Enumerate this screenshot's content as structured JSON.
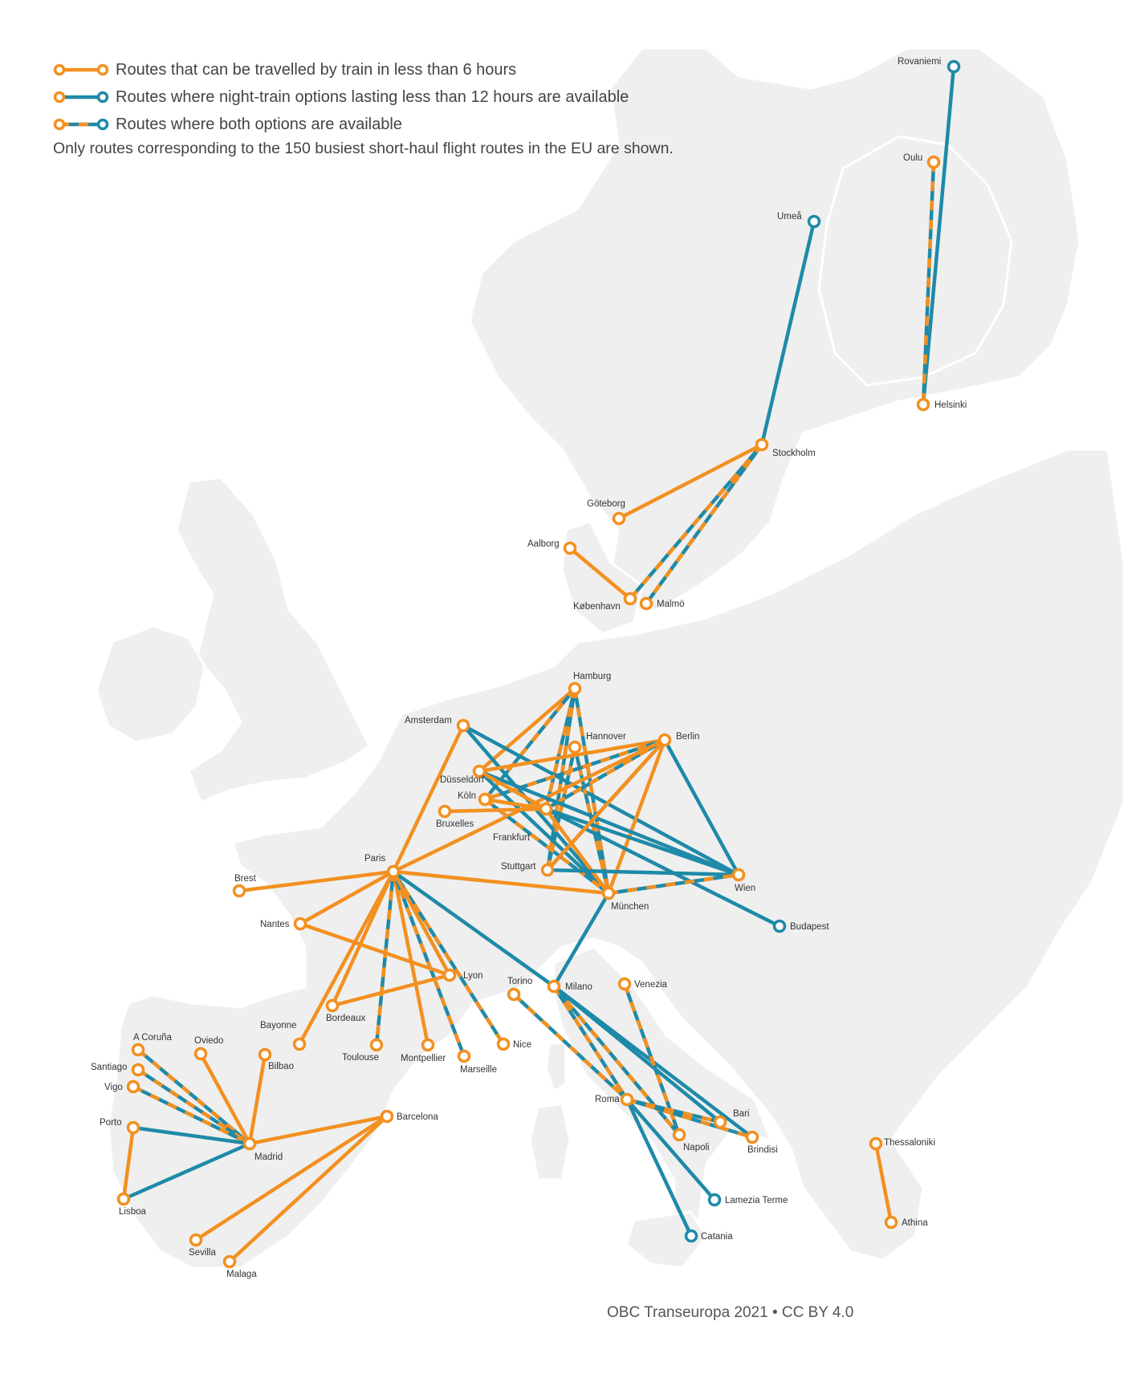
{
  "legend": {
    "train": "Routes that can be travelled by train in less than 6 hours",
    "night": "Routes where night-train options lasting less than 12 hours are available",
    "both": "Routes where both options are available",
    "note": "Only routes corresponding to the 150 busiest short-haul flight routes in the EU are shown."
  },
  "credit": "OBC Transeuropa 2021 • CC BY 4.0",
  "colors": {
    "train": "#f39020",
    "night": "#1e8aa8",
    "land": "#efefef"
  },
  "cities": [
    {
      "id": "rovaniemi",
      "name": "Rovaniemi",
      "kind": "night"
    },
    {
      "id": "oulu",
      "name": "Oulu",
      "kind": "train"
    },
    {
      "id": "umea",
      "name": "Umeå",
      "kind": "night"
    },
    {
      "id": "helsinki",
      "name": "Helsinki",
      "kind": "train"
    },
    {
      "id": "stockholm",
      "name": "Stockholm",
      "kind": "train"
    },
    {
      "id": "goteborg",
      "name": "Göteborg",
      "kind": "train"
    },
    {
      "id": "aalborg",
      "name": "Aalborg",
      "kind": "train"
    },
    {
      "id": "kobenhavn",
      "name": "København",
      "kind": "train"
    },
    {
      "id": "malmo",
      "name": "Malmö",
      "kind": "train"
    },
    {
      "id": "hamburg",
      "name": "Hamburg",
      "kind": "train"
    },
    {
      "id": "amsterdam",
      "name": "Amsterdam",
      "kind": "train"
    },
    {
      "id": "hannover",
      "name": "Hannover",
      "kind": "train"
    },
    {
      "id": "berlin",
      "name": "Berlin",
      "kind": "train"
    },
    {
      "id": "dusseldorf",
      "name": "Düsseldorf",
      "kind": "train"
    },
    {
      "id": "koln",
      "name": "Köln",
      "kind": "train"
    },
    {
      "id": "bruxelles",
      "name": "Bruxelles",
      "kind": "train"
    },
    {
      "id": "frankfurt",
      "name": "Frankfurt",
      "kind": "train"
    },
    {
      "id": "stuttgart",
      "name": "Stuttgart",
      "kind": "train"
    },
    {
      "id": "paris",
      "name": "Paris",
      "kind": "train"
    },
    {
      "id": "brest",
      "name": "Brest",
      "kind": "train"
    },
    {
      "id": "munchen",
      "name": "München",
      "kind": "train"
    },
    {
      "id": "wien",
      "name": "Wien",
      "kind": "train"
    },
    {
      "id": "budapest",
      "name": "Budapest",
      "kind": "night"
    },
    {
      "id": "nantes",
      "name": "Nantes",
      "kind": "train"
    },
    {
      "id": "lyon",
      "name": "Lyon",
      "kind": "train"
    },
    {
      "id": "torino",
      "name": "Torino",
      "kind": "train"
    },
    {
      "id": "milano",
      "name": "Milano",
      "kind": "train"
    },
    {
      "id": "venezia",
      "name": "Venezia",
      "kind": "train"
    },
    {
      "id": "bordeaux",
      "name": "Bordeaux",
      "kind": "train"
    },
    {
      "id": "bayonne",
      "name": "Bayonne",
      "kind": "train"
    },
    {
      "id": "toulouse",
      "name": "Toulouse",
      "kind": "train"
    },
    {
      "id": "montpellier",
      "name": "Montpellier",
      "kind": "train"
    },
    {
      "id": "marseille",
      "name": "Marseille",
      "kind": "train"
    },
    {
      "id": "nice",
      "name": "Nice",
      "kind": "train"
    },
    {
      "id": "acoruna",
      "name": "A Coruña",
      "kind": "train"
    },
    {
      "id": "oviedo",
      "name": "Oviedo",
      "kind": "train"
    },
    {
      "id": "santiago",
      "name": "Santiago",
      "kind": "train"
    },
    {
      "id": "bilbao",
      "name": "Bilbao",
      "kind": "train"
    },
    {
      "id": "vigo",
      "name": "Vigo",
      "kind": "train"
    },
    {
      "id": "porto",
      "name": "Porto",
      "kind": "train"
    },
    {
      "id": "madrid",
      "name": "Madrid",
      "kind": "train"
    },
    {
      "id": "barcelona",
      "name": "Barcelona",
      "kind": "train"
    },
    {
      "id": "lisboa",
      "name": "Lisboa",
      "kind": "train"
    },
    {
      "id": "sevilla",
      "name": "Sevilla",
      "kind": "train"
    },
    {
      "id": "malaga",
      "name": "Malaga",
      "kind": "train"
    },
    {
      "id": "roma",
      "name": "Roma",
      "kind": "train"
    },
    {
      "id": "bari",
      "name": "Bari",
      "kind": "train"
    },
    {
      "id": "napoli",
      "name": "Napoli",
      "kind": "train"
    },
    {
      "id": "brindisi",
      "name": "Brindisi",
      "kind": "train"
    },
    {
      "id": "lamezia",
      "name": "Lamezia Terme",
      "kind": "night"
    },
    {
      "id": "catania",
      "name": "Catania",
      "kind": "night"
    },
    {
      "id": "thessaloniki",
      "name": "Thessaloniki",
      "kind": "train"
    },
    {
      "id": "athina",
      "name": "Athina",
      "kind": "train"
    }
  ],
  "routes": [
    {
      "from": "rovaniemi",
      "to": "helsinki",
      "type": "night"
    },
    {
      "from": "oulu",
      "to": "helsinki",
      "type": "both"
    },
    {
      "from": "umea",
      "to": "stockholm",
      "type": "night"
    },
    {
      "from": "stockholm",
      "to": "goteborg",
      "type": "train"
    },
    {
      "from": "stockholm",
      "to": "kobenhavn",
      "type": "both"
    },
    {
      "from": "stockholm",
      "to": "malmo",
      "type": "both"
    },
    {
      "from": "aalborg",
      "to": "kobenhavn",
      "type": "train"
    },
    {
      "from": "hamburg",
      "to": "dusseldorf",
      "type": "train"
    },
    {
      "from": "hamburg",
      "to": "frankfurt",
      "type": "both"
    },
    {
      "from": "hamburg",
      "to": "stuttgart",
      "type": "both"
    },
    {
      "from": "hamburg",
      "to": "munchen",
      "type": "both"
    },
    {
      "from": "hamburg",
      "to": "koln",
      "type": "both"
    },
    {
      "from": "amsterdam",
      "to": "paris",
      "type": "train"
    },
    {
      "from": "amsterdam",
      "to": "munchen",
      "type": "night"
    },
    {
      "from": "amsterdam",
      "to": "wien",
      "type": "night"
    },
    {
      "from": "hannover",
      "to": "munchen",
      "type": "both"
    },
    {
      "from": "hannover",
      "to": "stuttgart",
      "type": "both"
    },
    {
      "from": "berlin",
      "to": "dusseldorf",
      "type": "train"
    },
    {
      "from": "berlin",
      "to": "koln",
      "type": "both"
    },
    {
      "from": "berlin",
      "to": "frankfurt",
      "type": "both"
    },
    {
      "from": "berlin",
      "to": "stuttgart",
      "type": "both"
    },
    {
      "from": "berlin",
      "to": "munchen",
      "type": "train"
    },
    {
      "from": "berlin",
      "to": "wien",
      "type": "night"
    },
    {
      "from": "berlin",
      "to": "paris",
      "type": "train"
    },
    {
      "from": "dusseldorf",
      "to": "munchen",
      "type": "night"
    },
    {
      "from": "dusseldorf",
      "to": "wien",
      "type": "night"
    },
    {
      "from": "dusseldorf",
      "to": "frankfurt",
      "type": "train"
    },
    {
      "from": "koln",
      "to": "munchen",
      "type": "both"
    },
    {
      "from": "koln",
      "to": "frankfurt",
      "type": "train"
    },
    {
      "from": "bruxelles",
      "to": "frankfurt",
      "type": "train"
    },
    {
      "from": "frankfurt",
      "to": "munchen",
      "type": "train"
    },
    {
      "from": "frankfurt",
      "to": "wien",
      "type": "night"
    },
    {
      "from": "frankfurt",
      "to": "budapest",
      "type": "night"
    },
    {
      "from": "stuttgart",
      "to": "wien",
      "type": "night"
    },
    {
      "from": "stuttgart",
      "to": "berlin",
      "type": "train"
    },
    {
      "from": "paris",
      "to": "munchen",
      "type": "train"
    },
    {
      "from": "paris",
      "to": "brest",
      "type": "train"
    },
    {
      "from": "paris",
      "to": "nantes",
      "type": "train"
    },
    {
      "from": "paris",
      "to": "bordeaux",
      "type": "train"
    },
    {
      "from": "paris",
      "to": "bayonne",
      "type": "train"
    },
    {
      "from": "paris",
      "to": "toulouse",
      "type": "both"
    },
    {
      "from": "paris",
      "to": "montpellier",
      "type": "train"
    },
    {
      "from": "paris",
      "to": "marseille",
      "type": "both"
    },
    {
      "from": "paris",
      "to": "nice",
      "type": "both"
    },
    {
      "from": "paris",
      "to": "lyon",
      "type": "train"
    },
    {
      "from": "paris",
      "to": "milano",
      "type": "night"
    },
    {
      "from": "munchen",
      "to": "wien",
      "type": "both"
    },
    {
      "from": "munchen",
      "to": "milano",
      "type": "night"
    },
    {
      "from": "nantes",
      "to": "lyon",
      "type": "train"
    },
    {
      "from": "bordeaux",
      "to": "lyon",
      "type": "train"
    },
    {
      "from": "milano",
      "to": "roma",
      "type": "both"
    },
    {
      "from": "milano",
      "to": "napoli",
      "type": "both"
    },
    {
      "from": "milano",
      "to": "bari",
      "type": "night"
    },
    {
      "from": "milano",
      "to": "brindisi",
      "type": "night"
    },
    {
      "from": "torino",
      "to": "roma",
      "type": "both"
    },
    {
      "from": "venezia",
      "to": "napoli",
      "type": "both"
    },
    {
      "from": "roma",
      "to": "bari",
      "type": "both"
    },
    {
      "from": "roma",
      "to": "brindisi",
      "type": "both"
    },
    {
      "from": "roma",
      "to": "lamezia",
      "type": "night"
    },
    {
      "from": "roma",
      "to": "catania",
      "type": "night"
    },
    {
      "from": "acoruna",
      "to": "madrid",
      "type": "both"
    },
    {
      "from": "santiago",
      "to": "madrid",
      "type": "both"
    },
    {
      "from": "vigo",
      "to": "madrid",
      "type": "both"
    },
    {
      "from": "oviedo",
      "to": "madrid",
      "type": "train"
    },
    {
      "from": "bilbao",
      "to": "madrid",
      "type": "train"
    },
    {
      "from": "porto",
      "to": "madrid",
      "type": "night"
    },
    {
      "from": "porto",
      "to": "lisboa",
      "type": "train"
    },
    {
      "from": "lisboa",
      "to": "madrid",
      "type": "night"
    },
    {
      "from": "madrid",
      "to": "barcelona",
      "type": "train"
    },
    {
      "from": "barcelona",
      "to": "sevilla",
      "type": "train"
    },
    {
      "from": "barcelona",
      "to": "malaga",
      "type": "train"
    },
    {
      "from": "thessaloniki",
      "to": "athina",
      "type": "train"
    }
  ]
}
